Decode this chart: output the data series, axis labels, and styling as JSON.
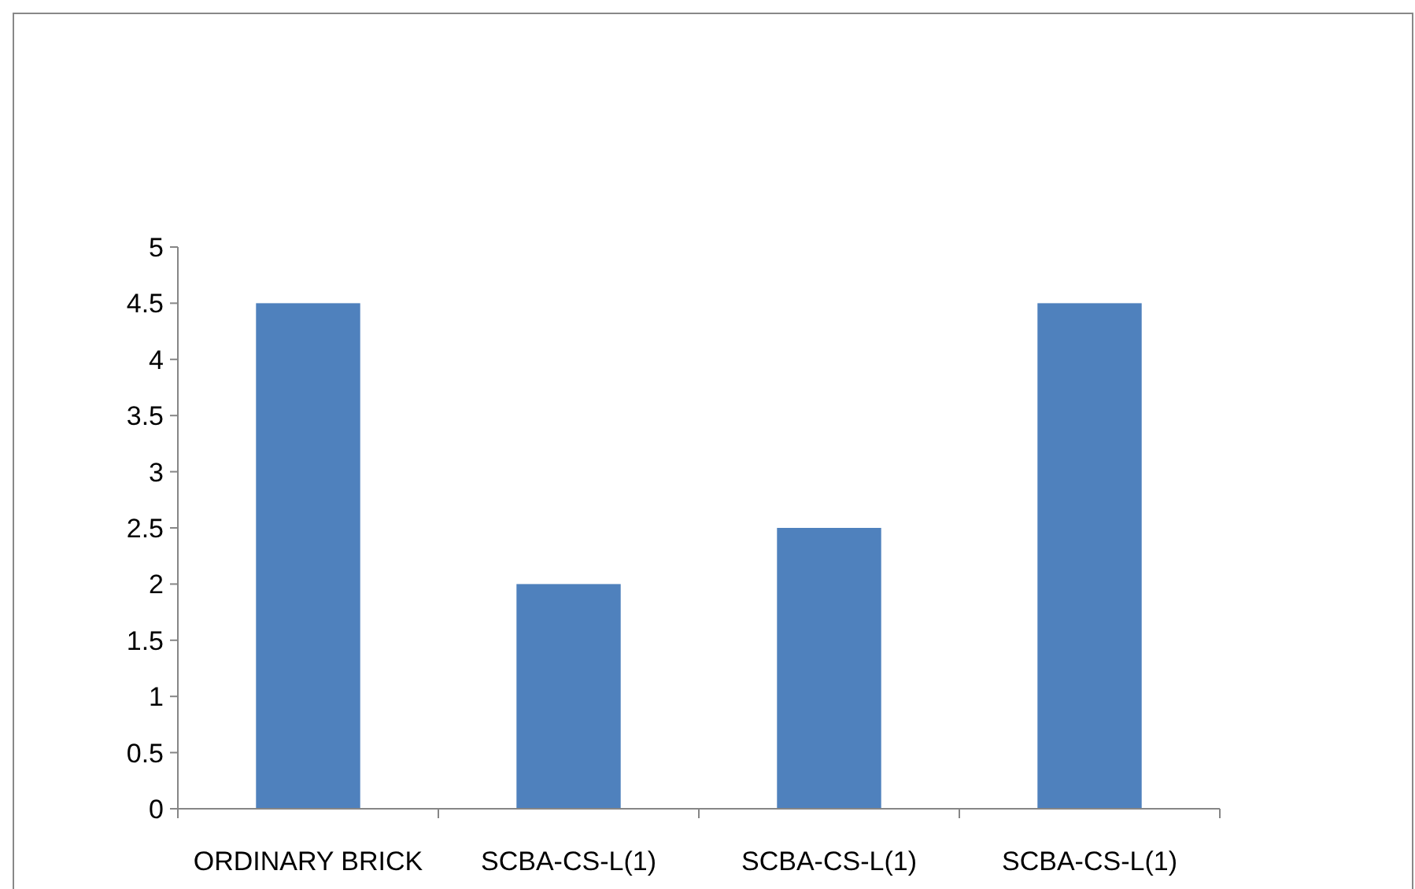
{
  "chart_data": {
    "type": "bar",
    "categories": [
      "ORDINARY BRICK",
      "SCBA-CS-L(1)",
      "SCBA-CS-L(1)",
      "SCBA-CS-L(1)"
    ],
    "values": [
      4.5,
      2,
      2.5,
      4.5
    ],
    "color": "#4f81bd",
    "ylim": [
      0,
      5
    ],
    "yticks": [
      0,
      0.5,
      1,
      1.5,
      2,
      2.5,
      3,
      3.5,
      4,
      4.5,
      5
    ],
    "grid": false
  }
}
